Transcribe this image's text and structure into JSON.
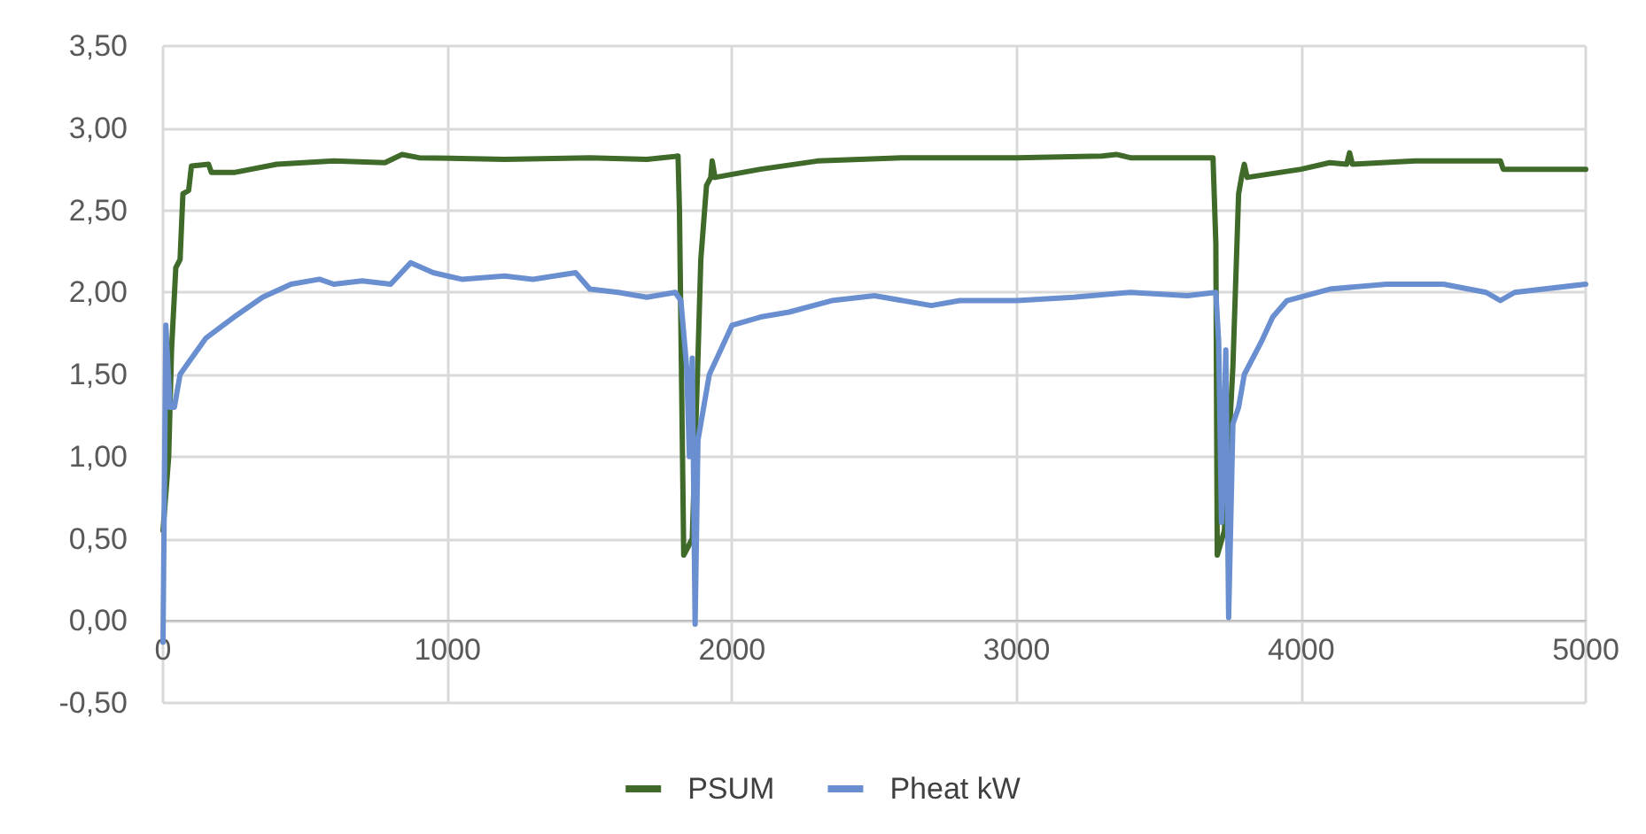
{
  "chart_data": {
    "type": "line",
    "xlim": [
      0,
      5000
    ],
    "xticks": [
      0,
      1000,
      2000,
      3000,
      4000,
      5000
    ],
    "ylim": [
      -0.5,
      3.5
    ],
    "yticks": [
      {
        "value": -0.5,
        "label": "-0,50"
      },
      {
        "value": 0,
        "label": "0,00"
      },
      {
        "value": 0.5,
        "label": "0,50"
      },
      {
        "value": 1,
        "label": "1,00"
      },
      {
        "value": 1.5,
        "label": "1,50"
      },
      {
        "value": 2,
        "label": "2,00"
      },
      {
        "value": 2.5,
        "label": "2,50"
      },
      {
        "value": 3,
        "label": "3,00"
      },
      {
        "value": 3.5,
        "label": "3,50"
      }
    ],
    "grid": true,
    "legend": "bottom",
    "marker": "none",
    "line_style": "solid",
    "series": [
      {
        "name": "PSUM",
        "color": "#3f6a2a",
        "x": [
          0,
          20,
          30,
          45,
          60,
          70,
          90,
          100,
          160,
          170,
          250,
          400,
          600,
          780,
          840,
          900,
          1200,
          1500,
          1700,
          1810,
          1815,
          1830,
          1860,
          1880,
          1890,
          1910,
          1925,
          1930,
          1940,
          2100,
          2300,
          2600,
          3000,
          3300,
          3350,
          3400,
          3690,
          3700,
          3705,
          3730,
          3760,
          3780,
          3790,
          3800,
          3810,
          4000,
          4100,
          4160,
          4170,
          4180,
          4400,
          4700,
          4710,
          5000
        ],
        "values": [
          0.55,
          1.0,
          1.65,
          2.15,
          2.2,
          2.6,
          2.62,
          2.77,
          2.78,
          2.73,
          2.73,
          2.78,
          2.8,
          2.79,
          2.84,
          2.82,
          2.81,
          2.82,
          2.81,
          2.83,
          2.5,
          0.4,
          0.5,
          1.6,
          2.2,
          2.65,
          2.7,
          2.8,
          2.7,
          2.75,
          2.8,
          2.82,
          2.82,
          2.83,
          2.84,
          2.82,
          2.82,
          2.3,
          0.4,
          0.55,
          1.55,
          2.6,
          2.7,
          2.78,
          2.7,
          2.75,
          2.79,
          2.78,
          2.85,
          2.78,
          2.8,
          2.8,
          2.75,
          2.75
        ]
      },
      {
        "name": "Pheat kW",
        "color": "#6a8fd0",
        "x": [
          0,
          10,
          25,
          40,
          60,
          80,
          150,
          250,
          350,
          450,
          550,
          600,
          700,
          800,
          870,
          950,
          1050,
          1200,
          1300,
          1450,
          1500,
          1600,
          1700,
          1800,
          1820,
          1840,
          1850,
          1860,
          1870,
          1880,
          1900,
          1920,
          1960,
          2000,
          2100,
          2200,
          2350,
          2500,
          2700,
          2800,
          3000,
          3200,
          3400,
          3600,
          3700,
          3710,
          3720,
          3735,
          3745,
          3760,
          3780,
          3800,
          3860,
          3900,
          3950,
          4100,
          4300,
          4500,
          4650,
          4700,
          4750,
          5000
        ],
        "values": [
          -0.13,
          1.8,
          1.3,
          1.3,
          1.5,
          1.55,
          1.72,
          1.85,
          1.97,
          2.05,
          2.08,
          2.05,
          2.07,
          2.05,
          2.18,
          2.12,
          2.08,
          2.1,
          2.08,
          2.12,
          2.02,
          2.0,
          1.97,
          2.0,
          1.95,
          1.55,
          1.0,
          1.6,
          -0.02,
          1.1,
          1.3,
          1.5,
          1.65,
          1.8,
          1.85,
          1.88,
          1.95,
          1.98,
          1.92,
          1.95,
          1.95,
          1.97,
          2.0,
          1.98,
          2.0,
          1.7,
          0.6,
          1.65,
          0.02,
          1.2,
          1.3,
          1.5,
          1.7,
          1.85,
          1.95,
          2.02,
          2.05,
          2.05,
          2.0,
          1.95,
          2.0,
          2.05
        ]
      }
    ]
  }
}
